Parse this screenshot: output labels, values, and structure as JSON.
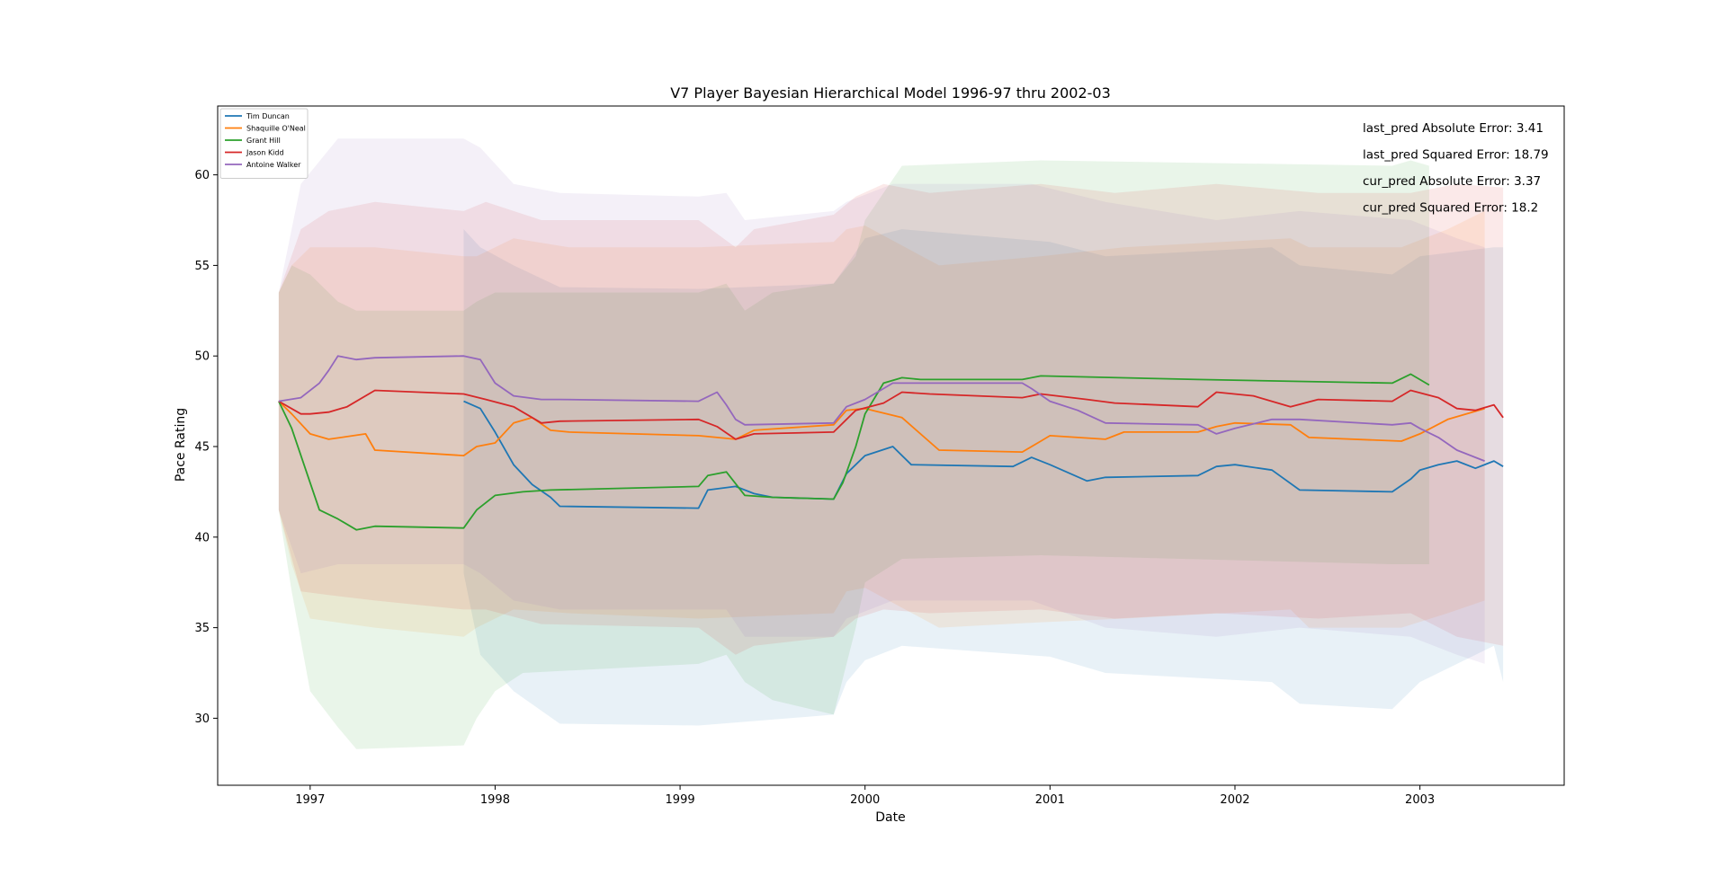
{
  "chart_data": {
    "type": "line",
    "title": "V7 Player Bayesian Hierarchical Model 1996-97 thru 2002-03",
    "xlabel": "Date",
    "ylabel": "Pace Rating",
    "xlim": [
      1996.5,
      2003.78
    ],
    "ylim": [
      26.3,
      63.8
    ],
    "x_ticks": [
      1997,
      1998,
      1999,
      2000,
      2001,
      2002,
      2003
    ],
    "x_tick_labels": [
      "1997",
      "1998",
      "1999",
      "2000",
      "2001",
      "2002",
      "2003"
    ],
    "y_ticks": [
      30,
      35,
      40,
      45,
      50,
      55,
      60
    ],
    "y_tick_labels": [
      "30",
      "35",
      "40",
      "45",
      "50",
      "55",
      "60"
    ],
    "grid": false,
    "legend_position": "top-left",
    "band_opacity": 0.1,
    "series": [
      {
        "name": "Tim Duncan",
        "color": "#1f77b4",
        "x": [
          1997.83,
          1997.92,
          1998.0,
          1998.1,
          1998.2,
          1998.3,
          1998.35,
          1999.1,
          1999.15,
          1999.3,
          1999.4,
          1999.5,
          1999.83,
          1999.9,
          2000.0,
          2000.15,
          2000.25,
          2000.8,
          2000.9,
          2001.0,
          2001.2,
          2001.3,
          2001.8,
          2001.9,
          2002.0,
          2002.2,
          2002.35,
          2002.85,
          2002.95,
          2003.0,
          2003.1,
          2003.2,
          2003.3,
          2003.4,
          2003.45
        ],
        "y": [
          47.5,
          47.1,
          45.8,
          44.0,
          42.9,
          42.2,
          41.7,
          41.6,
          42.6,
          42.8,
          42.4,
          42.2,
          42.1,
          43.5,
          44.5,
          45.0,
          44.0,
          43.9,
          44.4,
          44.0,
          43.1,
          43.3,
          43.4,
          43.9,
          44.0,
          43.7,
          42.6,
          42.5,
          43.2,
          43.7,
          44.0,
          44.2,
          43.8,
          44.2,
          43.9
        ]
      },
      {
        "name": "Shaquille O'Neal",
        "color": "#ff7f0e",
        "x": [
          1996.83,
          1996.9,
          1997.0,
          1997.1,
          1997.3,
          1997.35,
          1997.83,
          1997.9,
          1998.0,
          1998.1,
          1998.2,
          1998.3,
          1998.4,
          1999.1,
          1999.3,
          1999.4,
          1999.83,
          1999.9,
          2000.0,
          2000.2,
          2000.4,
          2000.85,
          2000.95,
          2001.0,
          2001.3,
          2001.4,
          2001.8,
          2001.9,
          2002.0,
          2002.3,
          2002.4,
          2002.9,
          2003.0,
          2003.15,
          2003.35
        ],
        "y": [
          47.5,
          46.8,
          45.7,
          45.4,
          45.7,
          44.8,
          44.5,
          45.0,
          45.2,
          46.3,
          46.6,
          45.9,
          45.8,
          45.6,
          45.4,
          45.9,
          46.2,
          47.0,
          47.1,
          46.6,
          44.8,
          44.7,
          45.3,
          45.6,
          45.4,
          45.8,
          45.8,
          46.1,
          46.3,
          46.2,
          45.5,
          45.3,
          45.7,
          46.5,
          47.1
        ]
      },
      {
        "name": "Grant Hill",
        "color": "#2ca02c",
        "x": [
          1996.83,
          1996.9,
          1997.0,
          1997.05,
          1997.15,
          1997.25,
          1997.35,
          1997.83,
          1997.9,
          1998.0,
          1998.15,
          1998.3,
          1999.1,
          1999.15,
          1999.25,
          1999.35,
          1999.5,
          1999.83,
          1999.88,
          1999.95,
          2000.0,
          2000.1,
          2000.2,
          2000.3,
          2000.85,
          2000.95,
          2001.8,
          2002.85,
          2002.95,
          2003.05
        ],
        "y": [
          47.5,
          46.0,
          43.0,
          41.5,
          41.0,
          40.4,
          40.6,
          40.5,
          41.5,
          42.3,
          42.5,
          42.6,
          42.8,
          43.4,
          43.6,
          42.3,
          42.2,
          42.1,
          43.0,
          45.0,
          46.8,
          48.5,
          48.8,
          48.7,
          48.7,
          48.9,
          48.7,
          48.5,
          49.0,
          48.4
        ]
      },
      {
        "name": "Jason Kidd",
        "color": "#d62728",
        "x": [
          1996.83,
          1996.95,
          1997.0,
          1997.1,
          1997.2,
          1997.35,
          1997.83,
          1997.95,
          1998.1,
          1998.25,
          1998.35,
          1999.1,
          1999.2,
          1999.3,
          1999.4,
          1999.83,
          1999.95,
          2000.1,
          2000.2,
          2000.35,
          2000.85,
          2000.95,
          2001.2,
          2001.35,
          2001.8,
          2001.9,
          2002.1,
          2002.3,
          2002.45,
          2002.85,
          2002.95,
          2003.1,
          2003.2,
          2003.3,
          2003.4,
          2003.45
        ],
        "y": [
          47.5,
          46.8,
          46.8,
          46.9,
          47.2,
          48.1,
          47.9,
          47.6,
          47.2,
          46.3,
          46.4,
          46.5,
          46.1,
          45.4,
          45.7,
          45.8,
          47.0,
          47.4,
          48.0,
          47.9,
          47.7,
          47.9,
          47.6,
          47.4,
          47.2,
          48.0,
          47.8,
          47.2,
          47.6,
          47.5,
          48.1,
          47.7,
          47.1,
          47.0,
          47.3,
          46.6
        ]
      },
      {
        "name": "Antoine Walker",
        "color": "#9467bd",
        "x": [
          1996.83,
          1996.95,
          1997.05,
          1997.1,
          1997.15,
          1997.25,
          1997.35,
          1997.83,
          1997.92,
          1998.0,
          1998.1,
          1998.25,
          1998.35,
          1999.1,
          1999.2,
          1999.25,
          1999.3,
          1999.35,
          1999.83,
          1999.9,
          2000.0,
          2000.15,
          2000.25,
          2000.85,
          2000.9,
          2001.0,
          2001.15,
          2001.3,
          2001.8,
          2001.9,
          2002.0,
          2002.2,
          2002.35,
          2002.85,
          2002.95,
          2003.0,
          2003.1,
          2003.2,
          2003.3,
          2003.35
        ],
        "y": [
          47.5,
          47.7,
          48.5,
          49.2,
          50.0,
          49.8,
          49.9,
          50.0,
          49.8,
          48.5,
          47.8,
          47.6,
          47.6,
          47.5,
          48.0,
          47.3,
          46.5,
          46.2,
          46.3,
          47.2,
          47.6,
          48.5,
          48.5,
          48.5,
          48.2,
          47.5,
          47.0,
          46.3,
          46.2,
          45.7,
          46.0,
          46.5,
          46.5,
          46.2,
          46.3,
          46.0,
          45.5,
          44.8,
          44.4,
          44.2
        ]
      }
    ],
    "bands": [
      {
        "name": "Tim Duncan",
        "color": "#1f77b4",
        "x": [
          1997.83,
          1997.92,
          1998.1,
          1998.35,
          1999.1,
          1999.83,
          1999.9,
          2000.0,
          2000.2,
          2001.0,
          2001.3,
          2002.2,
          2002.35,
          2002.85,
          2003.0,
          2003.4,
          2003.45
        ],
        "lower": [
          38.0,
          33.5,
          31.5,
          29.7,
          29.6,
          30.2,
          32.0,
          33.2,
          34.0,
          33.4,
          32.5,
          32.0,
          30.8,
          30.5,
          32.0,
          34.0,
          32.0
        ],
        "upper": [
          57.0,
          56.0,
          55.0,
          53.8,
          53.7,
          54.0,
          55.0,
          56.5,
          57.0,
          56.3,
          55.5,
          56.0,
          55.0,
          54.5,
          55.5,
          56.0,
          56.0
        ]
      },
      {
        "name": "Shaquille O'Neal",
        "color": "#ff7f0e",
        "x": [
          1996.83,
          1996.9,
          1997.0,
          1997.35,
          1997.83,
          1997.9,
          1998.1,
          1998.4,
          1999.1,
          1999.83,
          1999.9,
          2000.0,
          2000.4,
          2000.95,
          2001.4,
          2002.3,
          2002.4,
          2002.9,
          2003.15,
          2003.35
        ],
        "lower": [
          41.5,
          38.5,
          35.5,
          35.0,
          34.5,
          35.0,
          36.0,
          35.8,
          35.5,
          35.8,
          37.0,
          37.2,
          35.0,
          35.3,
          35.5,
          36.0,
          35.0,
          35.0,
          35.8,
          36.5
        ],
        "upper": [
          53.5,
          55.0,
          56.0,
          56.0,
          55.5,
          55.5,
          56.5,
          56.0,
          56.0,
          56.3,
          57.0,
          57.2,
          55.0,
          55.5,
          56.0,
          56.5,
          56.0,
          56.0,
          57.0,
          58.0
        ]
      },
      {
        "name": "Grant Hill",
        "color": "#2ca02c",
        "x": [
          1996.83,
          1996.9,
          1997.0,
          1997.15,
          1997.25,
          1997.83,
          1997.9,
          1998.0,
          1998.15,
          1999.1,
          1999.25,
          1999.35,
          1999.5,
          1999.83,
          1999.95,
          2000.0,
          2000.2,
          2000.95,
          2002.85,
          2002.95,
          2003.05
        ],
        "lower": [
          41.5,
          37.0,
          31.5,
          29.5,
          28.3,
          28.5,
          30.0,
          31.5,
          32.5,
          33.0,
          33.5,
          32.0,
          31.0,
          30.2,
          35.0,
          37.5,
          38.8,
          39.0,
          38.5,
          38.5,
          38.5
        ],
        "upper": [
          53.5,
          55.0,
          54.5,
          53.0,
          52.5,
          52.5,
          53.0,
          53.5,
          53.5,
          53.5,
          54.0,
          52.5,
          53.5,
          54.0,
          55.5,
          57.5,
          60.5,
          60.8,
          60.5,
          60.8,
          60.5
        ]
      },
      {
        "name": "Jason Kidd",
        "color": "#d62728",
        "x": [
          1996.83,
          1996.95,
          1997.1,
          1997.35,
          1997.83,
          1997.95,
          1998.25,
          1999.1,
          1999.3,
          1999.4,
          1999.83,
          1999.95,
          2000.1,
          2000.35,
          2000.95,
          2001.35,
          2001.9,
          2002.45,
          2002.95,
          2003.2,
          2003.45
        ],
        "lower": [
          41.5,
          37.0,
          36.8,
          36.5,
          36.0,
          36.0,
          35.2,
          35.0,
          33.5,
          34.0,
          34.5,
          35.5,
          36.0,
          35.8,
          36.0,
          35.5,
          35.8,
          35.5,
          35.8,
          34.5,
          34.0
        ],
        "upper": [
          53.5,
          57.0,
          58.0,
          58.5,
          58.0,
          58.5,
          57.5,
          57.5,
          56.0,
          57.0,
          57.8,
          58.8,
          59.5,
          59.0,
          59.5,
          59.0,
          59.5,
          59.0,
          59.0,
          59.5,
          59.3
        ]
      },
      {
        "name": "Antoine Walker",
        "color": "#9467bd",
        "x": [
          1996.83,
          1996.95,
          1997.15,
          1997.35,
          1997.83,
          1997.92,
          1998.1,
          1998.35,
          1999.1,
          1999.25,
          1999.35,
          1999.83,
          1999.9,
          2000.15,
          2000.9,
          2001.3,
          2001.9,
          2002.35,
          2002.95,
          2003.2,
          2003.35
        ],
        "lower": [
          41.5,
          38.0,
          38.5,
          38.5,
          38.5,
          38.0,
          36.5,
          36.0,
          36.0,
          36.0,
          34.5,
          34.5,
          35.5,
          36.5,
          36.5,
          35.0,
          34.5,
          35.0,
          34.5,
          33.5,
          33.0
        ],
        "upper": [
          53.5,
          59.5,
          62.0,
          62.0,
          62.0,
          61.5,
          59.5,
          59.0,
          58.8,
          59.0,
          57.5,
          58.0,
          58.5,
          59.5,
          59.5,
          58.5,
          57.5,
          58.0,
          57.5,
          56.5,
          56.0
        ]
      }
    ],
    "annotations": [
      "last_pred Absolute Error: 3.41",
      "last_pred Squared Error: 18.79",
      "cur_pred Absolute Error: 3.37",
      "cur_pred Squared Error: 18.2"
    ]
  }
}
